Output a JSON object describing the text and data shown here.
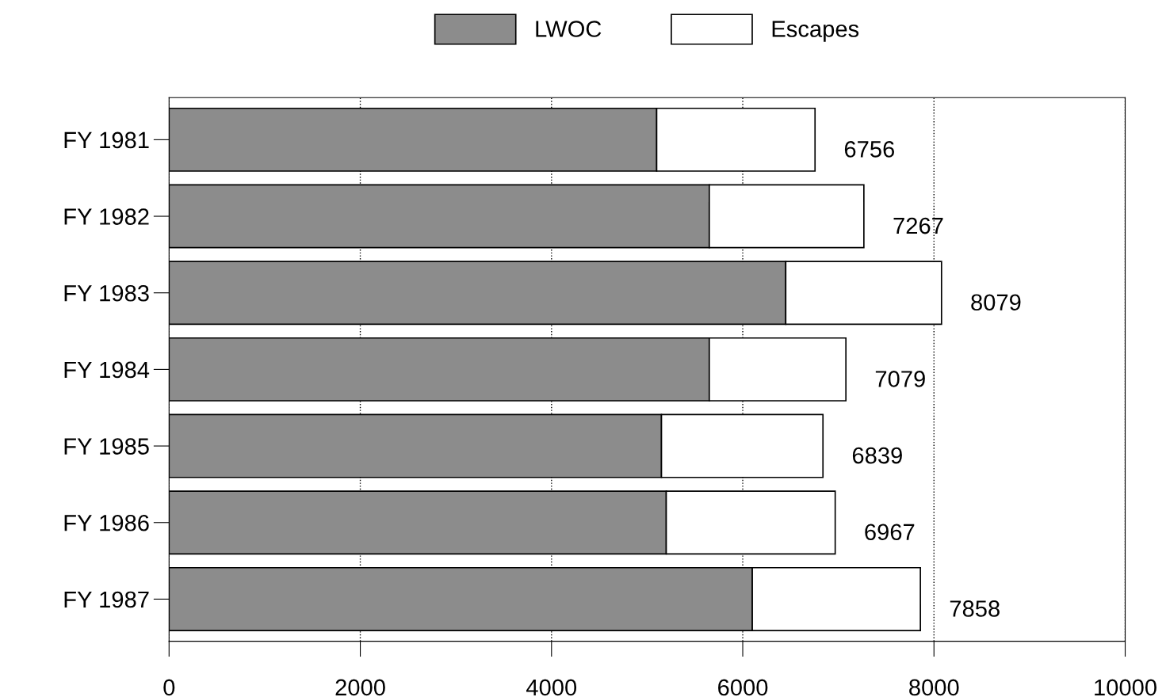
{
  "chart_data": {
    "type": "bar",
    "orientation": "horizontal",
    "stacked": true,
    "categories": [
      "FY 1981",
      "FY 1982",
      "FY 1983",
      "FY 1984",
      "FY 1985",
      "FY 1986",
      "FY 1987"
    ],
    "series": [
      {
        "name": "LWOC",
        "color": "#8c8c8c",
        "values": [
          5100,
          5650,
          6450,
          5650,
          5150,
          5200,
          6100
        ]
      },
      {
        "name": "Escapes",
        "color": "#ffffff",
        "values": [
          1656,
          1617,
          1629,
          1429,
          1689,
          1767,
          1758
        ]
      }
    ],
    "totals": [
      "6756",
      "7267",
      "8079",
      "7079",
      "6839",
      "6967",
      "7858"
    ],
    "xlim": [
      0,
      10000
    ],
    "xticks": [
      0,
      2000,
      4000,
      6000,
      8000,
      10000
    ],
    "grid": "x",
    "legend": "top"
  }
}
